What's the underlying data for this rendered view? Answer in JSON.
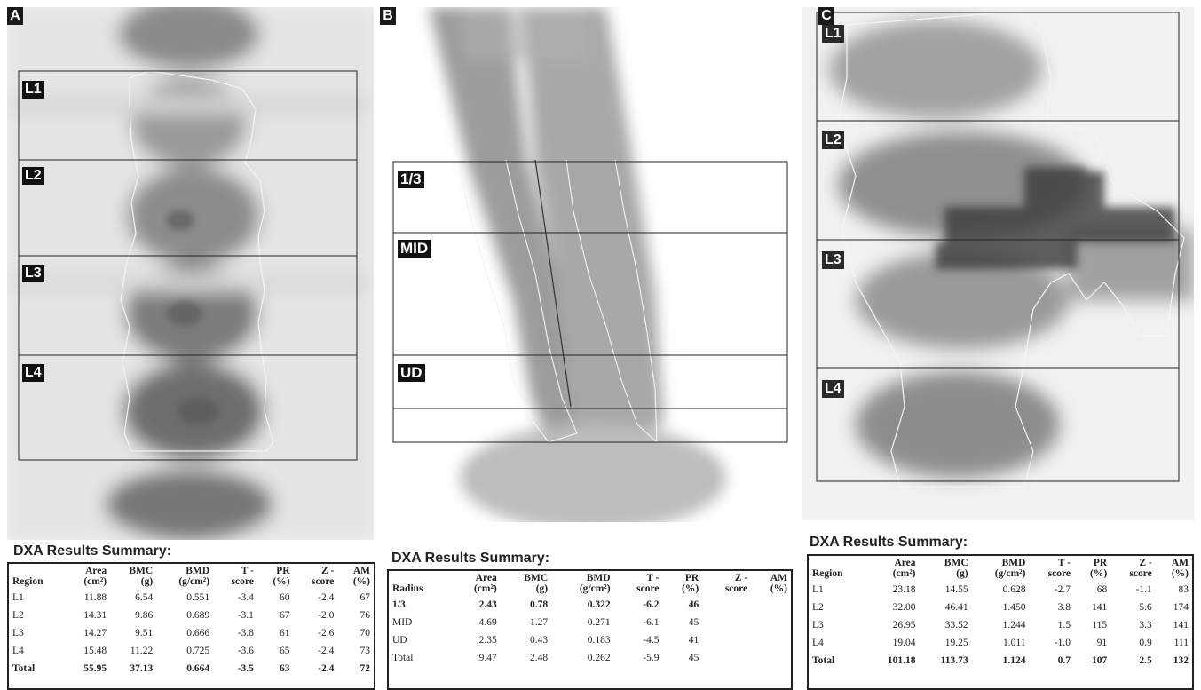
{
  "panels": [
    {
      "tag": "A",
      "roi_labels": [
        "L1",
        "L2",
        "L3",
        "L4"
      ],
      "summary": {
        "title": "DXA Results Summary:",
        "columns": [
          [
            "Region",
            ""
          ],
          [
            "Area",
            "(cm²)"
          ],
          [
            "BMC",
            "(g)"
          ],
          [
            "BMD",
            "(g/cm²)"
          ],
          [
            "T -",
            "score"
          ],
          [
            "PR",
            "(%)"
          ],
          [
            "Z -",
            "score"
          ],
          [
            "AM",
            "(%)"
          ]
        ],
        "rows": [
          [
            "L1",
            "11.88",
            "6.54",
            "0.551",
            "-3.4",
            "60",
            "-2.4",
            "67"
          ],
          [
            "L2",
            "14.31",
            "9.86",
            "0.689",
            "-3.1",
            "67",
            "-2.0",
            "76"
          ],
          [
            "L3",
            "14.27",
            "9.51",
            "0.666",
            "-3.8",
            "61",
            "-2.6",
            "70"
          ],
          [
            "L4",
            "15.48",
            "11.22",
            "0.725",
            "-3.6",
            "65",
            "-2.4",
            "73"
          ],
          [
            "Total",
            "55.95",
            "37.13",
            "0.664",
            "-3.5",
            "63",
            "-2.4",
            "72"
          ]
        ],
        "bold_rows": [
          4
        ]
      }
    },
    {
      "tag": "B",
      "roi_labels": [
        "1/3",
        "MID",
        "UD"
      ],
      "summary": {
        "title": "DXA Results Summary:",
        "columns": [
          [
            "Radius",
            ""
          ],
          [
            "Area",
            "(cm²)"
          ],
          [
            "BMC",
            "(g)"
          ],
          [
            "BMD",
            "(g/cm²)"
          ],
          [
            "T -",
            "score"
          ],
          [
            "PR",
            "(%)"
          ],
          [
            "Z -",
            "score"
          ],
          [
            "AM",
            "(%)"
          ]
        ],
        "rows": [
          [
            "1/3",
            "2.43",
            "0.78",
            "0.322",
            "-6.2",
            "46",
            "",
            ""
          ],
          [
            "MID",
            "4.69",
            "1.27",
            "0.271",
            "-6.1",
            "45",
            "",
            ""
          ],
          [
            "UD",
            "2.35",
            "0.43",
            "0.183",
            "-4.5",
            "41",
            "",
            ""
          ],
          [
            "Total",
            "9.47",
            "2.48",
            "0.262",
            "-5.9",
            "45",
            "",
            ""
          ]
        ],
        "bold_rows": [
          0
        ]
      }
    },
    {
      "tag": "C",
      "roi_labels": [
        "L1",
        "L2",
        "L3",
        "L4"
      ],
      "summary": {
        "title": "DXA Results Summary:",
        "columns": [
          [
            "Region",
            ""
          ],
          [
            "Area",
            "(cm²)"
          ],
          [
            "BMC",
            "(g)"
          ],
          [
            "BMD",
            "(g/cm²)"
          ],
          [
            "T -",
            "score"
          ],
          [
            "PR",
            "(%)"
          ],
          [
            "Z -",
            "score"
          ],
          [
            "AM",
            "(%)"
          ]
        ],
        "rows": [
          [
            "L1",
            "23.18",
            "14.55",
            "0.628",
            "-2.7",
            "68",
            "-1.1",
            "83"
          ],
          [
            "L2",
            "32.00",
            "46.41",
            "1.450",
            "3.8",
            "141",
            "5.6",
            "174"
          ],
          [
            "L3",
            "26.95",
            "33.52",
            "1.244",
            "1.5",
            "115",
            "3.3",
            "141"
          ],
          [
            "L4",
            "19.04",
            "19.25",
            "1.011",
            "-1.0",
            "91",
            "0.9",
            "111"
          ],
          [
            "Total",
            "101.18",
            "113.73",
            "1.124",
            "0.7",
            "107",
            "2.5",
            "132"
          ]
        ],
        "bold_rows": [
          4
        ]
      }
    }
  ]
}
